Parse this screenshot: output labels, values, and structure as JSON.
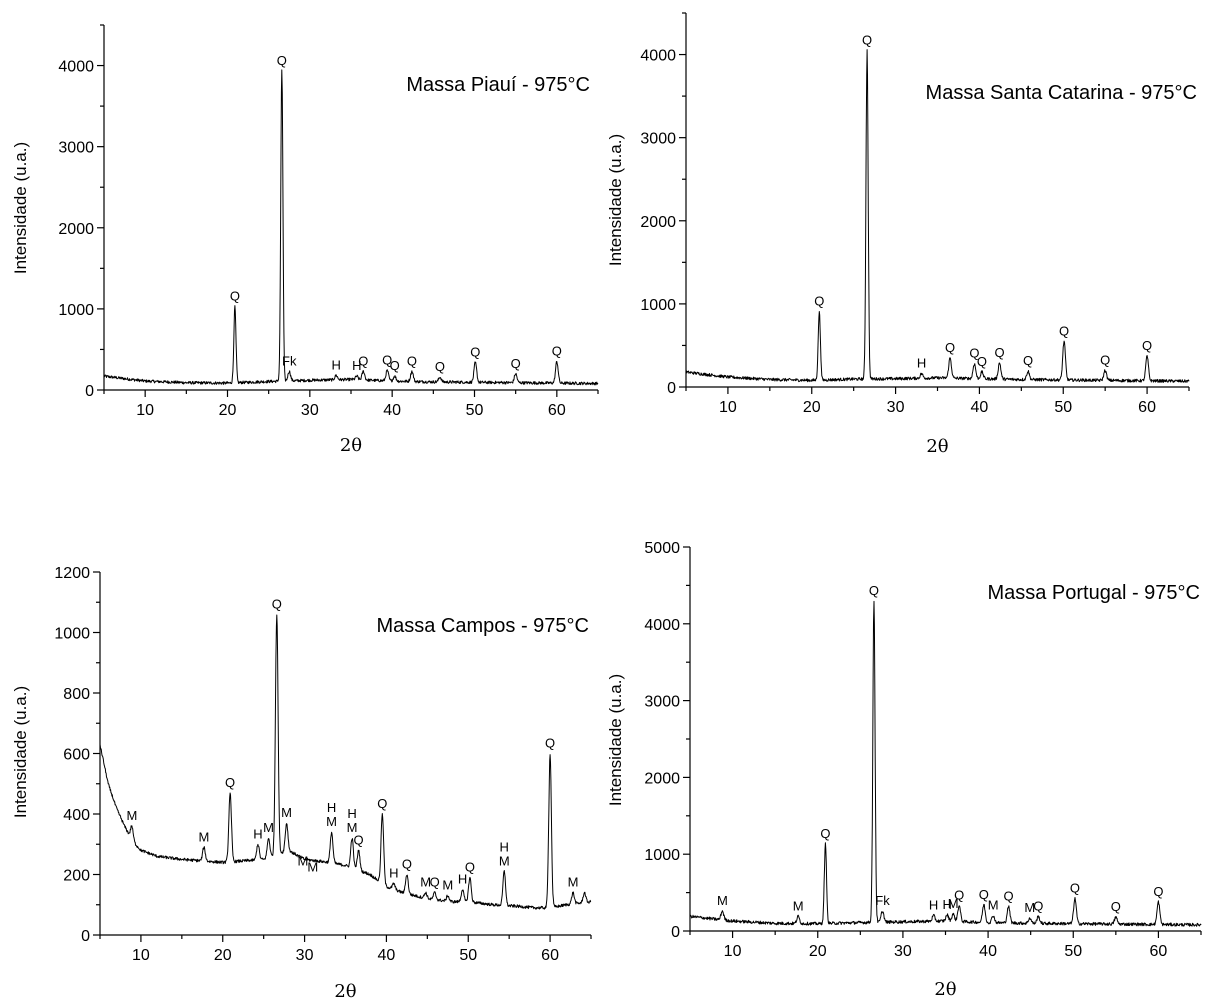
{
  "chart_data": [
    {
      "type": "line",
      "title": "Massa Piauí - 975°C",
      "xlabel": "2θ",
      "ylabel": "Intensidade (u.a.)",
      "xlim": [
        5,
        65
      ],
      "ylim": [
        0,
        4500
      ],
      "xticks": [
        10,
        20,
        30,
        40,
        50,
        60
      ],
      "yticks": [
        0,
        1000,
        2000,
        3000,
        4000
      ],
      "grid": false,
      "baseline": [
        [
          5,
          170
        ],
        [
          10,
          110
        ],
        [
          15,
          90
        ],
        [
          20,
          85
        ],
        [
          25,
          105
        ],
        [
          30,
          120
        ],
        [
          35,
          130
        ],
        [
          40,
          110
        ],
        [
          45,
          100
        ],
        [
          50,
          95
        ],
        [
          55,
          90
        ],
        [
          60,
          85
        ],
        [
          65,
          80
        ]
      ],
      "peaks": [
        {
          "x": 20.9,
          "y": 1030,
          "label": "Q"
        },
        {
          "x": 26.6,
          "y": 3930,
          "label": "Q"
        },
        {
          "x": 27.5,
          "y": 230,
          "label": "Fk"
        },
        {
          "x": 33.2,
          "y": 180,
          "label": "H"
        },
        {
          "x": 35.7,
          "y": 170,
          "label": "H"
        },
        {
          "x": 36.5,
          "y": 230,
          "label": "Q"
        },
        {
          "x": 39.4,
          "y": 240,
          "label": "Q"
        },
        {
          "x": 40.3,
          "y": 170,
          "label": "Q"
        },
        {
          "x": 42.4,
          "y": 230,
          "label": "Q"
        },
        {
          "x": 45.8,
          "y": 160,
          "label": "Q"
        },
        {
          "x": 50.1,
          "y": 340,
          "label": "Q"
        },
        {
          "x": 55.0,
          "y": 200,
          "label": "Q"
        },
        {
          "x": 60.0,
          "y": 350,
          "label": "Q"
        }
      ]
    },
    {
      "type": "line",
      "title": "Massa Santa Catarina - 975°C",
      "xlabel": "2θ",
      "ylabel": "Intensidade (u.a.)",
      "xlim": [
        5,
        65
      ],
      "ylim": [
        0,
        4500
      ],
      "xticks": [
        10,
        20,
        30,
        40,
        50,
        60
      ],
      "yticks": [
        0,
        1000,
        2000,
        3000,
        4000
      ],
      "grid": false,
      "baseline": [
        [
          5,
          180
        ],
        [
          10,
          120
        ],
        [
          15,
          90
        ],
        [
          20,
          80
        ],
        [
          25,
          95
        ],
        [
          30,
          100
        ],
        [
          35,
          110
        ],
        [
          40,
          100
        ],
        [
          45,
          90
        ],
        [
          50,
          85
        ],
        [
          55,
          80
        ],
        [
          60,
          75
        ],
        [
          65,
          70
        ]
      ],
      "peaks": [
        {
          "x": 20.9,
          "y": 910,
          "label": "Q"
        },
        {
          "x": 26.6,
          "y": 4050,
          "label": "Q"
        },
        {
          "x": 33.1,
          "y": 160,
          "label": "H"
        },
        {
          "x": 36.5,
          "y": 350,
          "label": "Q"
        },
        {
          "x": 39.4,
          "y": 280,
          "label": "Q"
        },
        {
          "x": 40.3,
          "y": 180,
          "label": "Q"
        },
        {
          "x": 42.4,
          "y": 290,
          "label": "Q"
        },
        {
          "x": 45.8,
          "y": 190,
          "label": "Q"
        },
        {
          "x": 50.1,
          "y": 550,
          "label": "Q"
        },
        {
          "x": 55.0,
          "y": 200,
          "label": "Q"
        },
        {
          "x": 60.0,
          "y": 370,
          "label": "Q"
        }
      ]
    },
    {
      "type": "line",
      "title": "Massa Campos - 975°C",
      "xlabel": "2θ",
      "ylabel": "Intensidade (u.a.)",
      "xlim": [
        5,
        65
      ],
      "ylim": [
        0,
        1200
      ],
      "xticks": [
        10,
        20,
        30,
        40,
        50,
        60
      ],
      "yticks": [
        0,
        200,
        400,
        600,
        800,
        1000,
        1200
      ],
      "grid": false,
      "baseline": [
        [
          5,
          630
        ],
        [
          6,
          500
        ],
        [
          7,
          420
        ],
        [
          8,
          360
        ],
        [
          9,
          310
        ],
        [
          10,
          280
        ],
        [
          12,
          260
        ],
        [
          15,
          250
        ],
        [
          20,
          240
        ],
        [
          25,
          250
        ],
        [
          28,
          280
        ],
        [
          30,
          250
        ],
        [
          33,
          240
        ],
        [
          35,
          230
        ],
        [
          38,
          200
        ],
        [
          40,
          160
        ],
        [
          42,
          140
        ],
        [
          45,
          120
        ],
        [
          48,
          110
        ],
        [
          50,
          110
        ],
        [
          53,
          100
        ],
        [
          56,
          95
        ],
        [
          58,
          90
        ],
        [
          60,
          90
        ],
        [
          62,
          100
        ],
        [
          65,
          110
        ]
      ],
      "peaks": [
        {
          "x": 8.9,
          "y": 360,
          "label": "M"
        },
        {
          "x": 17.7,
          "y": 290,
          "label": "M"
        },
        {
          "x": 20.9,
          "y": 470,
          "label": "Q"
        },
        {
          "x": 24.3,
          "y": 300,
          "label": "H"
        },
        {
          "x": 25.6,
          "y": 320,
          "label": "M"
        },
        {
          "x": 26.6,
          "y": 1060,
          "label": "Q"
        },
        {
          "x": 27.8,
          "y": 370,
          "label": "M"
        },
        {
          "x": 29.8,
          "y": 210,
          "label": "M"
        },
        {
          "x": 31.0,
          "y": 190,
          "label": "M"
        },
        {
          "x": 33.3,
          "y": 340,
          "label": "H M"
        },
        {
          "x": 35.8,
          "y": 320,
          "label": "H M"
        },
        {
          "x": 36.6,
          "y": 280,
          "label": "Q"
        },
        {
          "x": 39.5,
          "y": 400,
          "label": "Q"
        },
        {
          "x": 40.9,
          "y": 170,
          "label": "H"
        },
        {
          "x": 42.5,
          "y": 200,
          "label": "Q"
        },
        {
          "x": 44.8,
          "y": 140,
          "label": "M"
        },
        {
          "x": 45.9,
          "y": 140,
          "label": "Q"
        },
        {
          "x": 47.5,
          "y": 130,
          "label": "M"
        },
        {
          "x": 49.3,
          "y": 150,
          "label": "H"
        },
        {
          "x": 50.2,
          "y": 190,
          "label": "Q"
        },
        {
          "x": 54.4,
          "y": 210,
          "label": "H M"
        },
        {
          "x": 60.0,
          "y": 600,
          "label": "Q"
        },
        {
          "x": 62.8,
          "y": 140,
          "label": "M"
        },
        {
          "x": 64.2,
          "y": 140,
          "label": ""
        }
      ]
    },
    {
      "type": "line",
      "title": "Massa Portugal - 975°C",
      "xlabel": "2θ",
      "ylabel": "Intensidade (u.a.)",
      "xlim": [
        5,
        65
      ],
      "ylim": [
        0,
        5000
      ],
      "xticks": [
        10,
        20,
        30,
        40,
        50,
        60
      ],
      "yticks": [
        0,
        1000,
        2000,
        3000,
        4000,
        5000
      ],
      "grid": false,
      "baseline": [
        [
          5,
          190
        ],
        [
          10,
          130
        ],
        [
          15,
          100
        ],
        [
          20,
          95
        ],
        [
          25,
          110
        ],
        [
          30,
          120
        ],
        [
          35,
          130
        ],
        [
          40,
          110
        ],
        [
          45,
          100
        ],
        [
          50,
          95
        ],
        [
          55,
          90
        ],
        [
          60,
          85
        ],
        [
          65,
          80
        ]
      ],
      "peaks": [
        {
          "x": 8.8,
          "y": 260,
          "label": "M"
        },
        {
          "x": 17.7,
          "y": 190,
          "label": "M"
        },
        {
          "x": 20.9,
          "y": 1130,
          "label": "Q"
        },
        {
          "x": 26.6,
          "y": 4300,
          "label": "Q"
        },
        {
          "x": 27.6,
          "y": 260,
          "label": "Fk"
        },
        {
          "x": 33.6,
          "y": 200,
          "label": "H"
        },
        {
          "x": 35.2,
          "y": 210,
          "label": "H"
        },
        {
          "x": 35.9,
          "y": 220,
          "label": "M"
        },
        {
          "x": 36.6,
          "y": 330,
          "label": "Q"
        },
        {
          "x": 39.5,
          "y": 340,
          "label": "Q"
        },
        {
          "x": 40.6,
          "y": 200,
          "label": "M"
        },
        {
          "x": 42.4,
          "y": 320,
          "label": "Q"
        },
        {
          "x": 44.9,
          "y": 170,
          "label": "M"
        },
        {
          "x": 45.9,
          "y": 190,
          "label": "Q"
        },
        {
          "x": 50.2,
          "y": 420,
          "label": "Q"
        },
        {
          "x": 55.0,
          "y": 180,
          "label": "Q"
        },
        {
          "x": 60.0,
          "y": 380,
          "label": "Q"
        }
      ]
    }
  ]
}
